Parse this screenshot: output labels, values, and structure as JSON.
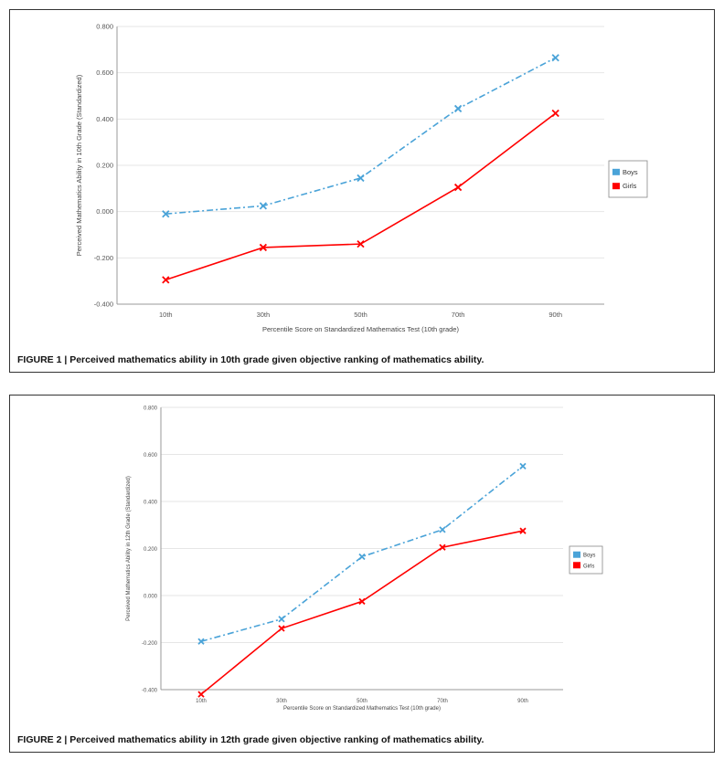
{
  "figures": [
    {
      "caption": "FIGURE 1 | Perceived mathematics ability in 10th grade given objective ranking of mathematics ability."
    },
    {
      "caption": "FIGURE 2 | Perceived mathematics ability in 12th grade given objective ranking of mathematics ability."
    }
  ],
  "chart_data": [
    {
      "type": "line",
      "categories": [
        "10th",
        "30th",
        "50th",
        "70th",
        "90th"
      ],
      "series": [
        {
          "name": "Boys",
          "values": [
            -0.01,
            0.025,
            0.145,
            0.445,
            0.665
          ],
          "color": "#4aa3d8",
          "dash": "dash-dot"
        },
        {
          "name": "Girls",
          "values": [
            -0.295,
            -0.155,
            -0.14,
            0.105,
            0.425
          ],
          "color": "#ff0000",
          "dash": "solid"
        }
      ],
      "xlabel": "Percentile Score on Standardized Mathematics Test (10th grade)",
      "ylabel": "Perceived Mathematics Ability in 10th Grade (Standardized)",
      "ylim": [
        -0.4,
        0.8
      ],
      "yticks": [
        "-0.400",
        "-0.200",
        "0.000",
        "0.200",
        "0.400",
        "0.600",
        "0.800"
      ],
      "grid": true,
      "legend": "right"
    },
    {
      "type": "line",
      "categories": [
        "10th",
        "30th",
        "50th",
        "70th",
        "90th"
      ],
      "series": [
        {
          "name": "Boys",
          "values": [
            -0.195,
            -0.1,
            0.165,
            0.28,
            0.55
          ],
          "color": "#4aa3d8",
          "dash": "dash-dot"
        },
        {
          "name": "Girls",
          "values": [
            -0.42,
            -0.14,
            -0.025,
            0.205,
            0.275
          ],
          "color": "#ff0000",
          "dash": "solid"
        }
      ],
      "xlabel": "Percentile Score on Standardized Mathematics Test (10th grade)",
      "ylabel": "Perceived Mathematics Ability in 12th Grade (Standardized)",
      "ylim": [
        -0.4,
        0.8
      ],
      "yticks": [
        "-0.400",
        "-0.200",
        "0.000",
        "0.200",
        "0.400",
        "0.600",
        "0.800"
      ],
      "grid": true,
      "legend": "right"
    }
  ]
}
